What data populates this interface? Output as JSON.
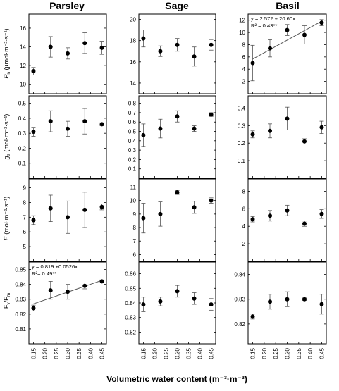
{
  "xlabel": "Volumetric water content (m⁻³·m⁻³)",
  "columns": [
    "Parsley",
    "Sage",
    "Basil"
  ],
  "x_ticks": [
    0.15,
    0.2,
    0.25,
    0.3,
    0.35,
    0.4,
    0.45
  ],
  "x_tick_labels": [
    "0.15",
    "0.20",
    "0.25",
    "0.30",
    "0.35",
    "0.40",
    "0.45"
  ],
  "row_ylabels": [
    {
      "main": "P",
      "sub": "n",
      "rest": " (μmol·m⁻²·s⁻¹)"
    },
    {
      "main": "g",
      "sub": "s",
      "rest": " (mol·m⁻²·s⁻¹)"
    },
    {
      "main": "E",
      "sub": "",
      "rest": " (mol·m⁻²·s⁻¹)"
    },
    {
      "main": "F",
      "sub": "v",
      "rest": "/F",
      "sub2": "m"
    }
  ],
  "chart_data": [
    {
      "type": "scatter",
      "row": 0,
      "col": 0,
      "ylim": [
        9,
        17.5
      ],
      "yticks": [
        10,
        12,
        14,
        16
      ],
      "x": [
        0.15,
        0.225,
        0.3,
        0.375,
        0.45
      ],
      "y": [
        11.4,
        14.0,
        13.3,
        14.4,
        13.9
      ],
      "err": [
        0.4,
        1.1,
        0.6,
        1.1,
        0.7
      ]
    },
    {
      "type": "scatter",
      "row": 0,
      "col": 1,
      "ylim": [
        13,
        20.5
      ],
      "yticks": [
        14,
        16,
        18,
        20
      ],
      "x": [
        0.15,
        0.225,
        0.3,
        0.375,
        0.45
      ],
      "y": [
        18.2,
        17.0,
        17.6,
        16.5,
        17.6
      ],
      "err": [
        0.8,
        0.5,
        0.6,
        0.9,
        0.5
      ]
    },
    {
      "type": "scatter",
      "row": 0,
      "col": 2,
      "ylim": [
        0,
        13
      ],
      "yticks": [
        2,
        4,
        6,
        8,
        10,
        12
      ],
      "x": [
        0.15,
        0.225,
        0.3,
        0.375,
        0.45
      ],
      "y": [
        5.0,
        7.4,
        10.4,
        9.6,
        11.6
      ],
      "err": [
        2.9,
        1.4,
        0.9,
        1.5,
        0.5
      ],
      "fit": {
        "intercept": 2.572,
        "slope": 20.6
      },
      "annotation": [
        "y = 2.572 + 20.60x",
        "R² = 0.43**"
      ]
    },
    {
      "type": "scatter",
      "row": 1,
      "col": 0,
      "ylim": [
        0,
        0.55
      ],
      "yticks": [
        0.1,
        0.2,
        0.3,
        0.4,
        0.5
      ],
      "x": [
        0.15,
        0.225,
        0.3,
        0.375,
        0.45
      ],
      "y": [
        0.31,
        0.38,
        0.33,
        0.38,
        0.36
      ],
      "err": [
        0.03,
        0.07,
        0.05,
        0.085,
        0.01
      ]
    },
    {
      "type": "scatter",
      "row": 1,
      "col": 1,
      "ylim": [
        0,
        0.88
      ],
      "yticks": [
        0.1,
        0.2,
        0.3,
        0.4,
        0.5,
        0.6,
        0.7,
        0.8
      ],
      "x": [
        0.15,
        0.225,
        0.3,
        0.375,
        0.45
      ],
      "y": [
        0.46,
        0.53,
        0.66,
        0.53,
        0.68
      ],
      "err": [
        0.12,
        0.1,
        0.06,
        0.03,
        0.02
      ]
    },
    {
      "type": "scatter",
      "row": 1,
      "col": 2,
      "ylim": [
        0,
        0.47
      ],
      "yticks": [
        0.1,
        0.2,
        0.3,
        0.4
      ],
      "x": [
        0.15,
        0.225,
        0.3,
        0.375,
        0.45
      ],
      "y": [
        0.25,
        0.27,
        0.34,
        0.21,
        0.29
      ],
      "err": [
        0.02,
        0.04,
        0.065,
        0.015,
        0.035
      ]
    },
    {
      "type": "scatter",
      "row": 2,
      "col": 0,
      "ylim": [
        4,
        9.6
      ],
      "yticks": [
        5,
        6,
        7,
        8,
        9
      ],
      "x": [
        0.15,
        0.225,
        0.3,
        0.375,
        0.45
      ],
      "y": [
        6.8,
        7.6,
        7.0,
        7.5,
        7.7
      ],
      "err": [
        0.3,
        0.9,
        1.1,
        1.2,
        0.2
      ]
    },
    {
      "type": "scatter",
      "row": 2,
      "col": 1,
      "ylim": [
        5.5,
        11.6
      ],
      "yticks": [
        6,
        7,
        8,
        9,
        10,
        11
      ],
      "x": [
        0.15,
        0.225,
        0.3,
        0.375,
        0.45
      ],
      "y": [
        8.7,
        9.0,
        10.6,
        9.5,
        10.0
      ],
      "err": [
        1.1,
        0.9,
        0.15,
        0.45,
        0.2
      ]
    },
    {
      "type": "scatter",
      "row": 2,
      "col": 2,
      "ylim": [
        0,
        9.4
      ],
      "yticks": [
        2,
        4,
        6,
        8
      ],
      "x": [
        0.15,
        0.225,
        0.3,
        0.375,
        0.45
      ],
      "y": [
        4.8,
        5.2,
        5.8,
        4.3,
        5.4
      ],
      "err": [
        0.3,
        0.6,
        0.6,
        0.3,
        0.5
      ]
    },
    {
      "type": "scatter",
      "row": 3,
      "col": 0,
      "ylim": [
        0.8,
        0.855
      ],
      "yticks": [
        0.81,
        0.82,
        0.83,
        0.84,
        0.85
      ],
      "x": [
        0.15,
        0.225,
        0.3,
        0.375,
        0.45
      ],
      "y": [
        0.824,
        0.836,
        0.835,
        0.839,
        0.842
      ],
      "err": [
        0.002,
        0.006,
        0.005,
        0.002,
        0.001
      ],
      "fit": {
        "intercept": 0.819,
        "slope": 0.0526
      },
      "annotation": [
        "y = 0.819 +0.0526x",
        "R²= 0.49**"
      ]
    },
    {
      "type": "scatter",
      "row": 3,
      "col": 1,
      "ylim": [
        0.812,
        0.868
      ],
      "yticks": [
        0.82,
        0.83,
        0.84,
        0.85,
        0.86
      ],
      "x": [
        0.15,
        0.225,
        0.3,
        0.375,
        0.45
      ],
      "y": [
        0.839,
        0.841,
        0.848,
        0.843,
        0.839
      ],
      "err": [
        0.005,
        0.003,
        0.004,
        0.004,
        0.004
      ]
    },
    {
      "type": "scatter",
      "row": 3,
      "col": 2,
      "ylim": [
        0.812,
        0.845
      ],
      "yticks": [
        0.82,
        0.83,
        0.84
      ],
      "x": [
        0.15,
        0.225,
        0.3,
        0.375,
        0.45
      ],
      "y": [
        0.823,
        0.829,
        0.83,
        0.83,
        0.828
      ],
      "err": [
        0.001,
        0.003,
        0.003,
        0.0005,
        0.004
      ]
    }
  ]
}
